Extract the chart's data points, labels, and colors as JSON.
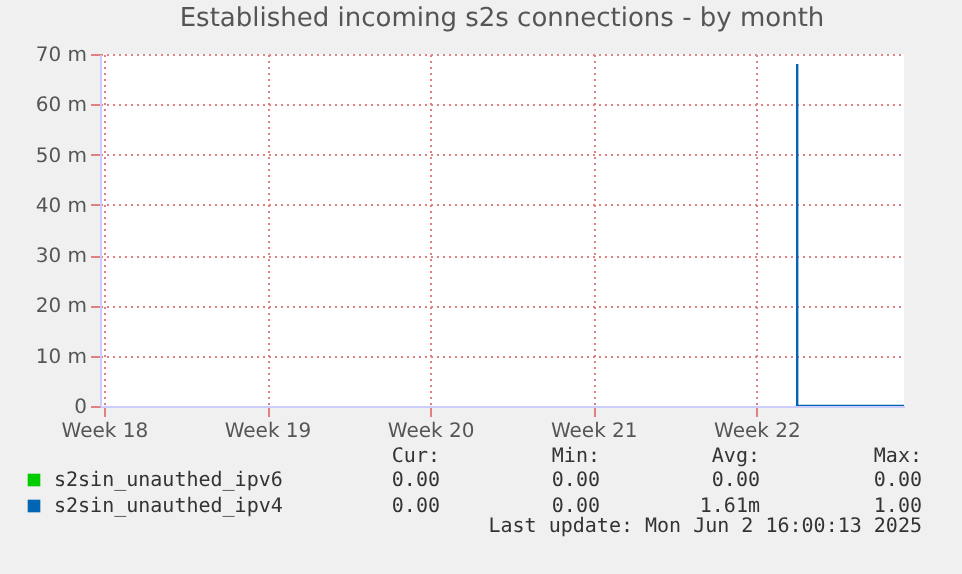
{
  "chart_data": {
    "type": "line",
    "title": "Established incoming s2s connections - by month",
    "xlim": [
      "2025-04-27T20:00",
      "2025-06-01T08:00"
    ],
    "xticks": [
      {
        "value": "2025-04-28",
        "label": "Week 18"
      },
      {
        "value": "2025-05-05",
        "label": "Week 19"
      },
      {
        "value": "2025-05-12",
        "label": "Week 20"
      },
      {
        "value": "2025-05-19",
        "label": "Week 21"
      },
      {
        "value": "2025-05-26",
        "label": "Week 22"
      }
    ],
    "ylim": [
      0,
      70
    ],
    "yticks": [
      0,
      {
        "value": 10,
        "label": "10 m"
      },
      {
        "value": 20,
        "label": "20 m"
      },
      {
        "value": 30,
        "label": "30 m"
      },
      {
        "value": 40,
        "label": "40 m"
      },
      {
        "value": 50,
        "label": "50 m"
      },
      {
        "value": 60,
        "label": "60 m"
      },
      {
        "value": 70,
        "label": "70 m"
      }
    ],
    "series": [
      {
        "name": "s2sin_unauthed_ipv6",
        "color": "#00cc00"
      },
      {
        "name": "s2sin_unauthed_ipv4",
        "color": "#0066b3",
        "x": [
          "2025-05-27T18:00",
          "2025-05-27T18:00",
          "2025-06-01T08:00"
        ],
        "values": [
          68,
          0,
          0
        ]
      }
    ],
    "annotations": [
      "Cur:",
      "Min:",
      "Avg:",
      "Max:",
      "0.00",
      "0.00",
      "0.00",
      "0.00",
      "0.00",
      "0.00",
      "1.61m",
      "1.00",
      "Last update: Mon Jun  2 16:00:13 2025"
    ],
    "grid": true,
    "legend": "bottom"
  }
}
